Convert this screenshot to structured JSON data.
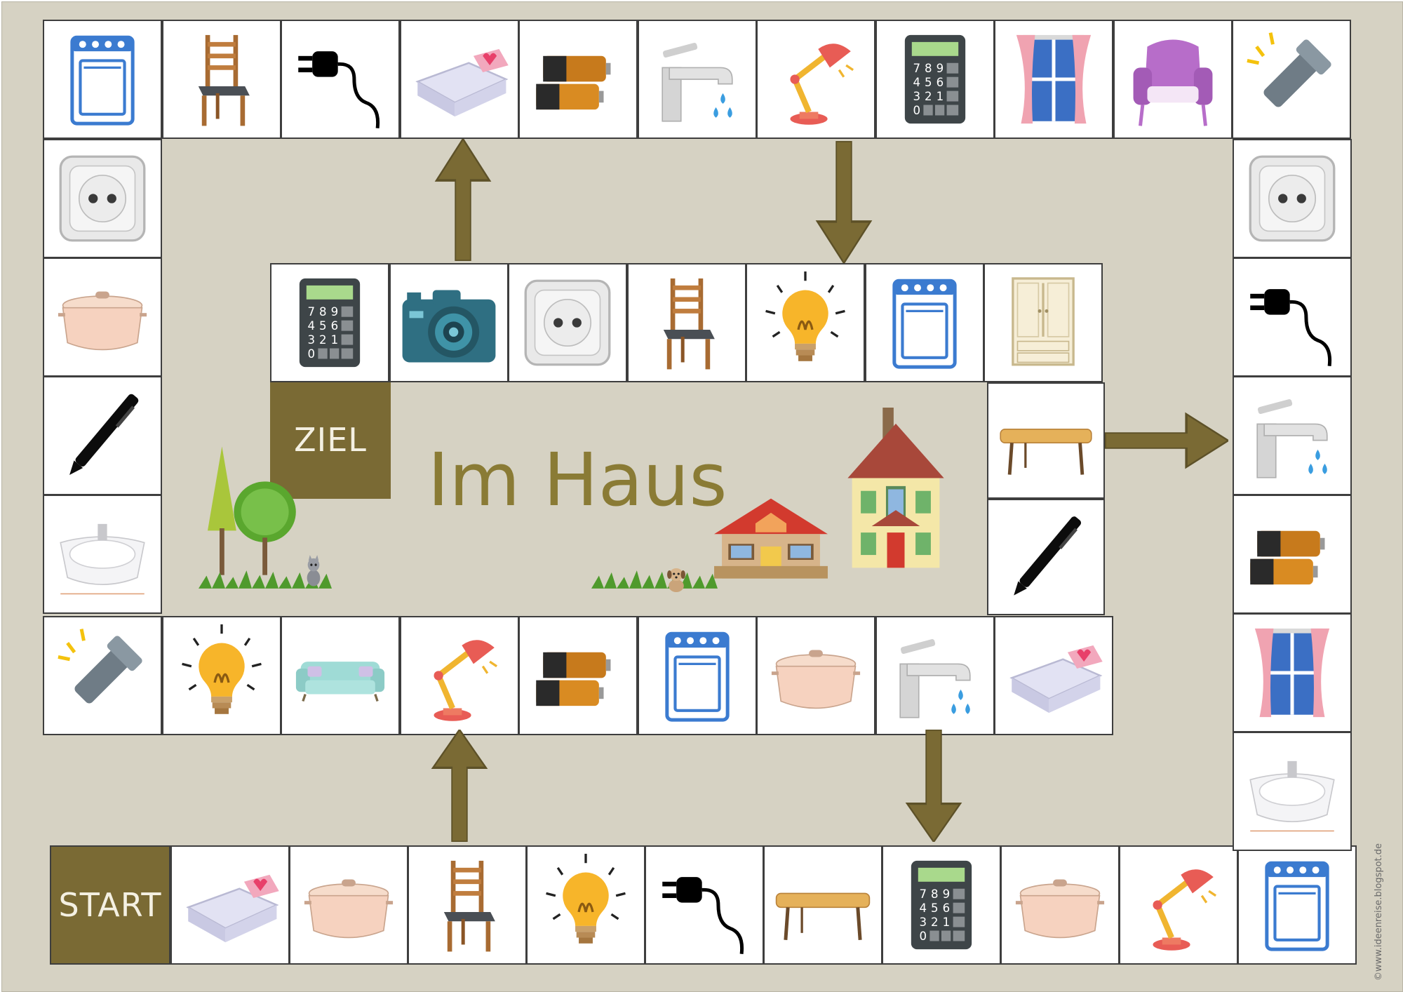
{
  "board": {
    "title": "Im Haus",
    "start_label": "START",
    "ziel_label": "ZIEL",
    "credit": "©www.ideenreise.blogspot.de"
  },
  "colors": {
    "background": "#d6d2c3",
    "arrow": "#7a6a34",
    "label_tile": "#7a6a34",
    "title_text": "#8a7b35"
  },
  "tiles": {
    "top_row": [
      "stove-icon",
      "chair-icon",
      "plug-icon",
      "bed-icon",
      "batteries-icon",
      "faucet-icon",
      "desk-lamp-icon",
      "calculator-icon",
      "window-icon",
      "armchair-icon",
      "flashlight-icon"
    ],
    "left_column": [
      "socket-icon",
      "pot-icon",
      "pen-icon",
      "sink-icon"
    ],
    "middle_row": [
      "flashlight-icon",
      "light-bulb-icon",
      "sofa-icon",
      "desk-lamp-icon",
      "batteries-icon",
      "stove-icon",
      "pot-icon",
      "faucet-icon",
      "bed-icon"
    ],
    "bottom_row": [
      "bed-icon",
      "pot-icon",
      "chair-icon",
      "light-bulb-icon",
      "plug-icon",
      "table-icon",
      "calculator-icon",
      "pot-icon",
      "desk-lamp-icon",
      "stove-icon"
    ],
    "right_column": [
      "socket-icon",
      "plug-icon",
      "faucet-icon",
      "batteries-icon",
      "window-icon",
      "sink-icon"
    ],
    "inner_row": [
      "calculator-icon",
      "camera-icon",
      "socket-icon",
      "chair-icon",
      "light-bulb-icon",
      "stove-icon",
      "wardrobe-icon"
    ],
    "inner_column": [
      "table-icon",
      "pen-icon"
    ]
  },
  "decorations": [
    "trees-icon",
    "cat-icon",
    "grass-icon",
    "dog-icon",
    "small-house-icon",
    "big-house-icon"
  ]
}
